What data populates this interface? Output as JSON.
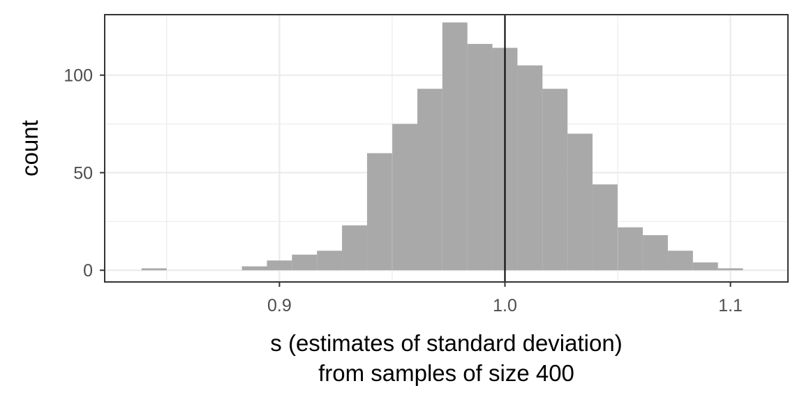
{
  "chart_data": {
    "type": "bar",
    "histogram": true,
    "bin_width": 0.0111,
    "bins": [
      {
        "x": 0.8444,
        "count": 1
      },
      {
        "x": 0.8556,
        "count": 0
      },
      {
        "x": 0.8667,
        "count": 0
      },
      {
        "x": 0.8778,
        "count": 0
      },
      {
        "x": 0.8889,
        "count": 2
      },
      {
        "x": 0.9,
        "count": 5
      },
      {
        "x": 0.9111,
        "count": 8
      },
      {
        "x": 0.9222,
        "count": 10
      },
      {
        "x": 0.9333,
        "count": 23
      },
      {
        "x": 0.9444,
        "count": 60
      },
      {
        "x": 0.9556,
        "count": 75
      },
      {
        "x": 0.9667,
        "count": 93
      },
      {
        "x": 0.9778,
        "count": 127
      },
      {
        "x": 0.9889,
        "count": 116
      },
      {
        "x": 1.0,
        "count": 114
      },
      {
        "x": 1.0111,
        "count": 105
      },
      {
        "x": 1.0222,
        "count": 93
      },
      {
        "x": 1.0333,
        "count": 70
      },
      {
        "x": 1.0444,
        "count": 44
      },
      {
        "x": 1.0556,
        "count": 22
      },
      {
        "x": 1.0667,
        "count": 18
      },
      {
        "x": 1.0778,
        "count": 10
      },
      {
        "x": 1.0889,
        "count": 4
      },
      {
        "x": 1.1,
        "count": 1
      }
    ],
    "reference_line_x": 1.0,
    "xlim": [
      0.8225,
      1.1255
    ],
    "ylim": [
      -6,
      131
    ],
    "x_ticks": [
      "0.9",
      "1.0",
      "1.1"
    ],
    "x_tick_values": [
      0.9,
      1.0,
      1.1
    ],
    "y_ticks": [
      "0",
      "50",
      "100"
    ],
    "y_tick_values": [
      0,
      50,
      100
    ],
    "xlabel_lines": [
      "s (estimates of standard deviation)",
      "from samples of size 400"
    ],
    "ylabel": "count",
    "grid": true,
    "bar_color": "#a9a9a9",
    "line_color": "#000000",
    "grid_color": "#ebebeb",
    "panel_border_color": "#333333"
  }
}
